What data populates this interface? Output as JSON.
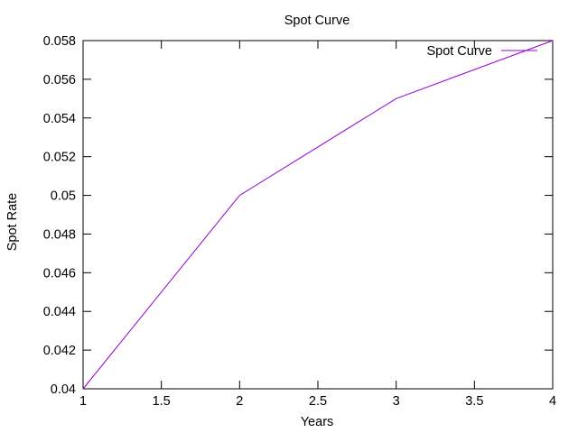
{
  "chart_data": {
    "type": "line",
    "title": "Spot Curve",
    "xlabel": "Years",
    "ylabel": "Spot Rate",
    "xlim": [
      1,
      4
    ],
    "ylim": [
      0.04,
      0.058
    ],
    "x_ticks": [
      "1",
      "1.5",
      "2",
      "2.5",
      "3",
      "3.5",
      "4"
    ],
    "y_ticks": [
      "0.04",
      "0.042",
      "0.044",
      "0.046",
      "0.048",
      "0.05",
      "0.052",
      "0.054",
      "0.056",
      "0.058"
    ],
    "grid": false,
    "legend_position": "top-right",
    "series": [
      {
        "name": "Spot Curve",
        "color": "#9400d3",
        "x": [
          1,
          2,
          3,
          4
        ],
        "y": [
          0.04,
          0.05,
          0.055,
          0.058
        ]
      }
    ]
  }
}
